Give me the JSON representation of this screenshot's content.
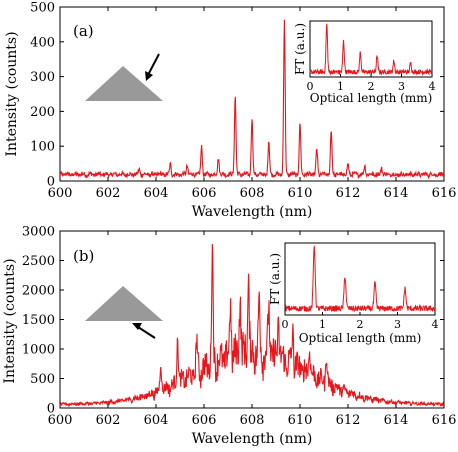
{
  "chart_data": [
    {
      "panel": "(a)",
      "type": "line",
      "xlabel": "Wavelength (nm)",
      "ylabel": "Intensity (counts)",
      "xlim": [
        600,
        616
      ],
      "ylim": [
        0,
        500
      ],
      "xticks": [
        600,
        602,
        604,
        606,
        608,
        610,
        612,
        614,
        616
      ],
      "yticks": [
        0,
        100,
        200,
        300,
        400,
        500
      ],
      "color": "#e8151b",
      "baseline": 15,
      "envelope": "flat",
      "peaks": [
        {
          "x": 603.3,
          "y": 30
        },
        {
          "x": 604.6,
          "y": 45
        },
        {
          "x": 605.3,
          "y": 42
        },
        {
          "x": 605.9,
          "y": 95
        },
        {
          "x": 606.6,
          "y": 65
        },
        {
          "x": 607.3,
          "y": 243
        },
        {
          "x": 608.0,
          "y": 177
        },
        {
          "x": 608.7,
          "y": 110
        },
        {
          "x": 609.35,
          "y": 460
        },
        {
          "x": 610.0,
          "y": 160
        },
        {
          "x": 610.7,
          "y": 88
        },
        {
          "x": 611.3,
          "y": 142
        },
        {
          "x": 612.0,
          "y": 45
        },
        {
          "x": 612.7,
          "y": 40
        },
        {
          "x": 613.4,
          "y": 35
        }
      ],
      "inset": {
        "xlabel": "Optical length (mm)",
        "ylabel": "FT (a.u.)",
        "xlim": [
          0,
          4
        ],
        "xticks": [
          0,
          1,
          2,
          3,
          4
        ],
        "peaks": [
          {
            "x": 0.55,
            "y": 0.85
          },
          {
            "x": 1.1,
            "y": 0.55
          },
          {
            "x": 1.65,
            "y": 0.35
          },
          {
            "x": 2.2,
            "y": 0.28
          },
          {
            "x": 2.75,
            "y": 0.2
          },
          {
            "x": 3.3,
            "y": 0.16
          }
        ]
      },
      "illustration": {
        "shape": "triangle",
        "arrow_side": "upper-right"
      }
    },
    {
      "panel": "(b)",
      "type": "line",
      "xlabel": "Wavelength (nm)",
      "ylabel": "Intensity (counts)",
      "xlim": [
        600,
        616
      ],
      "ylim": [
        0,
        3000
      ],
      "xticks": [
        600,
        602,
        604,
        606,
        608,
        610,
        612,
        614,
        616
      ],
      "yticks": [
        0,
        500,
        1000,
        1500,
        2000,
        2500,
        3000
      ],
      "color": "#e8151b",
      "baseline": 50,
      "envelope": "gaussian",
      "envelope_center": 608,
      "envelope_peak": 750,
      "peaks": [
        {
          "x": 604.2,
          "y": 700
        },
        {
          "x": 604.9,
          "y": 1100
        },
        {
          "x": 605.7,
          "y": 1000
        },
        {
          "x": 606.35,
          "y": 2500
        },
        {
          "x": 607.1,
          "y": 1600
        },
        {
          "x": 607.5,
          "y": 1750
        },
        {
          "x": 607.85,
          "y": 1950
        },
        {
          "x": 608.3,
          "y": 1650
        },
        {
          "x": 608.7,
          "y": 1550
        },
        {
          "x": 609.1,
          "y": 1300
        },
        {
          "x": 609.7,
          "y": 1150
        },
        {
          "x": 610.4,
          "y": 950
        },
        {
          "x": 611.1,
          "y": 800
        }
      ],
      "inset": {
        "xlabel": "Optical length (mm)",
        "ylabel": "FT (a.u.)",
        "xlim": [
          0,
          4
        ],
        "xticks": [
          0,
          1,
          2,
          3,
          4
        ],
        "peaks": [
          {
            "x": 0.78,
            "y": 0.88
          },
          {
            "x": 1.6,
            "y": 0.45
          },
          {
            "x": 2.4,
            "y": 0.35
          },
          {
            "x": 3.2,
            "y": 0.28
          }
        ]
      },
      "illustration": {
        "shape": "triangle",
        "arrow_side": "lower-left"
      }
    }
  ]
}
